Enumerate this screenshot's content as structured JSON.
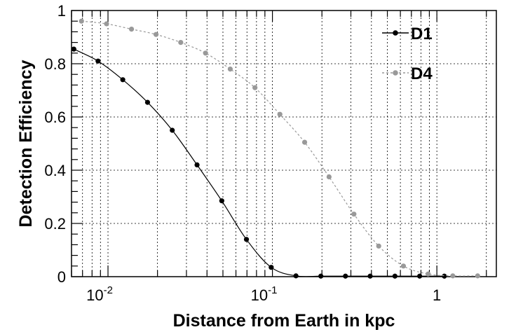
{
  "chart_data": {
    "type": "line",
    "title": "",
    "xlabel": "Distance from Earth in kpc",
    "ylabel": "Detection Efficiency",
    "x_scale": "log",
    "xlim": [
      0.006,
      2.3
    ],
    "ylim": [
      0,
      1
    ],
    "grid": true,
    "legend_position": "top-right",
    "y_ticks": [
      {
        "value": 0,
        "label": "0"
      },
      {
        "value": 0.2,
        "label": "0.2"
      },
      {
        "value": 0.4,
        "label": "0.4"
      },
      {
        "value": 0.6,
        "label": "0.6"
      },
      {
        "value": 0.8,
        "label": "0.8"
      },
      {
        "value": 1,
        "label": "1"
      }
    ],
    "x_ticks": [
      {
        "value": 0.01,
        "base": "10",
        "exp": "-2"
      },
      {
        "value": 0.1,
        "base": "10",
        "exp": "-1"
      },
      {
        "value": 1,
        "base": "1",
        "exp": ""
      }
    ],
    "series": [
      {
        "name": "D1",
        "color": "#000000",
        "line_style": "solid",
        "x": [
          0.0062,
          0.0087,
          0.0123,
          0.0174,
          0.0246,
          0.0348,
          0.0492,
          0.0695,
          0.0983,
          0.139,
          0.197,
          0.278,
          0.393,
          0.556,
          0.786,
          1.11
        ],
        "y": [
          0.855,
          0.81,
          0.74,
          0.655,
          0.55,
          0.42,
          0.285,
          0.14,
          0.035,
          0.003,
          0.002,
          0.002,
          0.002,
          0.002,
          0.002,
          0.002
        ]
      },
      {
        "name": "D4",
        "color": "#999999",
        "line_style": "dashed",
        "x": [
          0.0069,
          0.0098,
          0.0139,
          0.0196,
          0.0277,
          0.0392,
          0.0554,
          0.0783,
          0.111,
          0.157,
          0.221,
          0.313,
          0.443,
          0.626,
          0.885,
          1.25,
          1.77
        ],
        "y": [
          0.96,
          0.95,
          0.93,
          0.91,
          0.88,
          0.84,
          0.78,
          0.71,
          0.61,
          0.505,
          0.375,
          0.235,
          0.115,
          0.04,
          0.01,
          0.003,
          0.003
        ]
      }
    ]
  }
}
